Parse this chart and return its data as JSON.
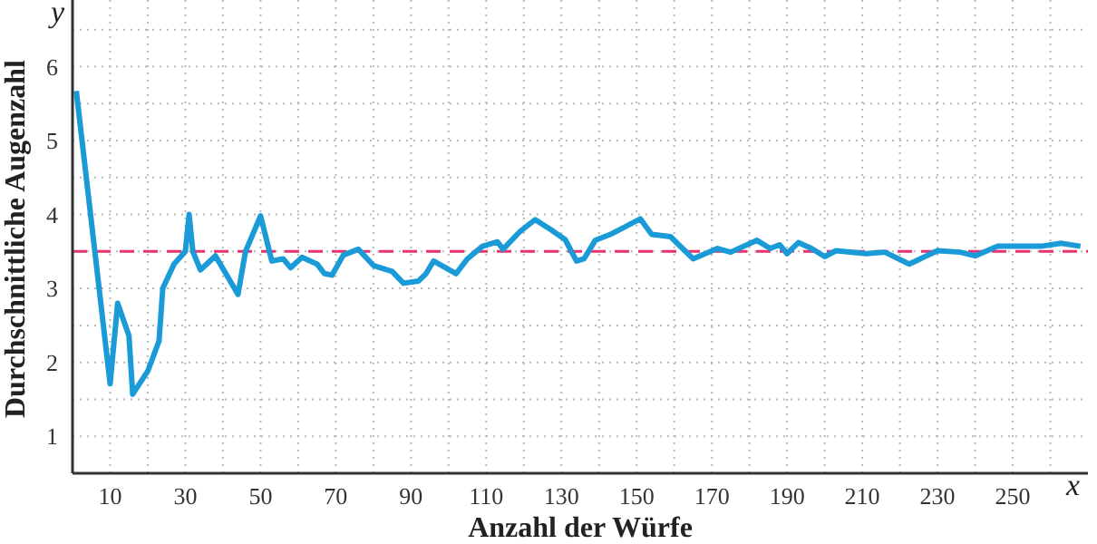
{
  "chart_data": {
    "type": "line",
    "xlabel": "Anzahl der Würfe",
    "ylabel": "Durchschnittliche Augenzahl",
    "annotations": [
      "x",
      "y"
    ],
    "x": [
      1,
      10,
      12,
      15,
      16,
      20,
      23,
      24,
      27,
      30,
      31,
      32,
      34,
      38,
      44,
      46,
      50,
      53,
      56,
      58,
      61,
      65,
      67,
      69,
      72,
      76,
      80,
      85,
      88,
      92,
      94,
      96,
      102,
      105,
      109,
      113,
      114.5,
      119,
      123,
      127,
      131,
      134,
      136,
      139,
      143,
      151,
      154,
      159,
      165,
      171.5,
      175,
      182,
      185.5,
      188,
      190,
      193,
      196.5,
      200,
      203,
      211,
      216,
      222.5,
      230,
      236,
      240,
      246,
      257.5,
      263,
      268
    ],
    "series": [
      {
        "color": "#1a9ad6",
        "values": [
          5.67,
          1.71,
          2.8,
          2.36,
          1.57,
          1.88,
          2.29,
          3.0,
          3.33,
          3.5,
          4.0,
          3.5,
          3.25,
          3.44,
          2.92,
          3.5,
          3.98,
          3.37,
          3.4,
          3.28,
          3.42,
          3.33,
          3.2,
          3.18,
          3.45,
          3.53,
          3.31,
          3.23,
          3.07,
          3.1,
          3.2,
          3.37,
          3.2,
          3.4,
          3.57,
          3.63,
          3.53,
          3.77,
          3.93,
          3.8,
          3.66,
          3.37,
          3.4,
          3.65,
          3.73,
          3.94,
          3.73,
          3.7,
          3.4,
          3.54,
          3.49,
          3.65,
          3.54,
          3.59,
          3.47,
          3.62,
          3.54,
          3.43,
          3.51,
          3.47,
          3.49,
          3.33,
          3.51,
          3.49,
          3.44,
          3.57,
          3.57,
          3.61,
          3.57
        ]
      }
    ],
    "xlim": [
      0,
      270
    ],
    "xticks": [
      10,
      {
        "value": 20,
        "label": null
      },
      30,
      {
        "value": 40,
        "label": null
      },
      50,
      {
        "value": 60,
        "label": null
      },
      70,
      {
        "value": 80,
        "label": null
      },
      90,
      {
        "value": 100,
        "label": null
      },
      110,
      {
        "value": 120,
        "label": null
      },
      130,
      {
        "value": 140,
        "label": null
      },
      150,
      {
        "value": 160,
        "label": null
      },
      170,
      {
        "value": 180,
        "label": null
      },
      190,
      {
        "value": 200,
        "label": null
      },
      210,
      {
        "value": 220,
        "label": null
      },
      230,
      {
        "value": 240,
        "label": null
      },
      250,
      {
        "value": 260,
        "label": null
      }
    ],
    "ylim": [
      0.5,
      6.9
    ],
    "yticks": [
      1,
      {
        "value": 1.5,
        "label": null
      },
      2,
      {
        "value": 2.5,
        "label": null
      },
      3,
      {
        "value": 3.5,
        "label": null
      },
      4,
      {
        "value": 4.5,
        "label": null
      },
      5,
      {
        "value": 5.5,
        "label": null
      },
      6,
      {
        "value": 6.5,
        "label": null
      }
    ],
    "ref_lines": [
      {
        "axis": "y",
        "value": 3.5,
        "label": null,
        "color": "#e8336e",
        "line_style": "dashed"
      }
    ],
    "grid": true,
    "marker": "none",
    "line_style": "solid"
  }
}
